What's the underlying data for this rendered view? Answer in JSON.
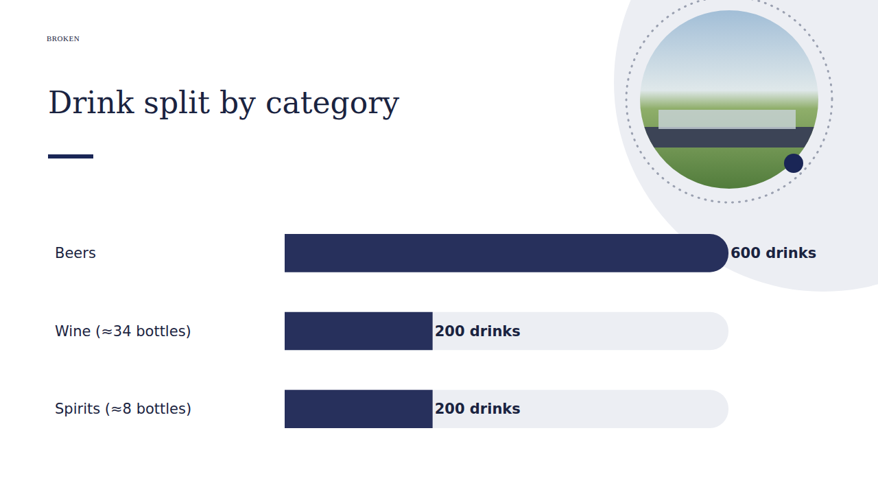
{
  "logo": "BROKEN",
  "chart_data": {
    "type": "bar",
    "orientation": "horizontal",
    "title": "Drink split by category",
    "categories": [
      "Beers",
      "Wine (≈34 bottles)",
      "Spirits (≈8 bottles)"
    ],
    "values": [
      600,
      200,
      200
    ],
    "value_labels": [
      "600 drinks",
      "200 drinks",
      "200 drinks"
    ],
    "data_labels": true,
    "color": "#27305c",
    "xlim": [
      0,
      600
    ],
    "xticks": [],
    "tick_labels": "y",
    "grid": false
  }
}
